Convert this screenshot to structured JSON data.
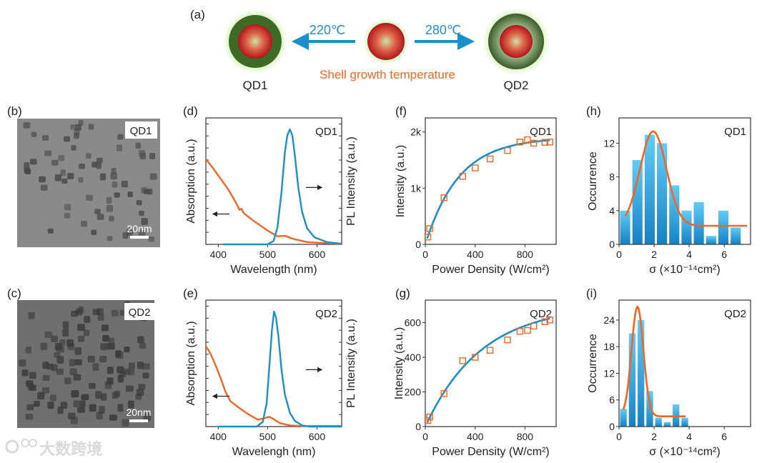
{
  "panel_a": {
    "label": "(a)",
    "left_temp": "220℃",
    "right_temp": "280℃",
    "caption": "Shell growth temperature",
    "qd1": "QD1",
    "qd2": "QD2"
  },
  "tem": [
    {
      "label": "(b)",
      "tag": "QD1",
      "scale": "20nm"
    },
    {
      "label": "(c)",
      "tag": "QD2",
      "scale": "20nm"
    }
  ],
  "watermark": "大数跨境",
  "colors": {
    "blue": "#1a8fc9",
    "orange": "#f26522",
    "bar_top": "#62cdf7",
    "bar_bottom": "#1681c4",
    "temp_text": "#1a8fc9",
    "caption_text": "#f26522"
  },
  "chart_data": [
    {
      "id": "d",
      "label": "(d)",
      "type": "line",
      "tag": "QD1",
      "xlabel": "Wavelength (nm)",
      "ylabel": "Absorption (a.u.)",
      "y2label": "PL Intensity (a.u.)",
      "xlim": [
        375,
        650
      ],
      "ylim": [
        0,
        1.1
      ],
      "xticks": [
        {
          "v": 400,
          "t": "400"
        },
        {
          "v": 500,
          "t": "500"
        },
        {
          "v": 600,
          "t": "600"
        }
      ],
      "series": [
        {
          "name": "Absorption",
          "color": "orange",
          "axis": "left",
          "x": [
            375,
            390,
            405,
            420,
            435,
            443,
            447,
            452,
            470,
            500,
            520,
            535,
            550,
            580,
            620,
            650
          ],
          "y": [
            0.74,
            0.66,
            0.57,
            0.48,
            0.37,
            0.3,
            0.31,
            0.27,
            0.21,
            0.12,
            0.07,
            0.075,
            0.05,
            0.02,
            0.01,
            0.005
          ]
        },
        {
          "name": "PL",
          "color": "blue",
          "axis": "right",
          "x": [
            410,
            500,
            512,
            520,
            528,
            535,
            540,
            545,
            550,
            555,
            562,
            570,
            580,
            595,
            620,
            650
          ],
          "y": [
            0,
            0,
            0.03,
            0.15,
            0.45,
            0.8,
            0.95,
            1,
            0.95,
            0.78,
            0.5,
            0.28,
            0.14,
            0.06,
            0.02,
            0.005
          ]
        }
      ]
    },
    {
      "id": "e",
      "label": "(e)",
      "type": "line",
      "tag": "QD2",
      "xlabel": "Wavelengh (nm)",
      "ylabel": "Absorption (a.u.)",
      "y2label": "PL Intensity (a.u.)",
      "xlim": [
        375,
        650
      ],
      "ylim": [
        0,
        1.1
      ],
      "xticks": [
        {
          "v": 400,
          "t": "400"
        },
        {
          "v": 500,
          "t": "500"
        },
        {
          "v": 600,
          "t": "600"
        }
      ],
      "series": [
        {
          "name": "Absorption",
          "color": "orange",
          "axis": "left",
          "x": [
            375,
            385,
            395,
            405,
            415,
            425,
            440,
            460,
            480,
            492,
            503,
            512,
            525,
            545,
            570,
            650
          ],
          "y": [
            0.7,
            0.63,
            0.53,
            0.42,
            0.3,
            0.22,
            0.17,
            0.11,
            0.06,
            0.07,
            0.085,
            0.065,
            0.03,
            0.01,
            0.005,
            0.005
          ]
        },
        {
          "name": "PL",
          "color": "blue",
          "axis": "right",
          "x": [
            400,
            478,
            490,
            498,
            504,
            509,
            513,
            517,
            522,
            528,
            535,
            545,
            555,
            570,
            585,
            650
          ],
          "y": [
            0,
            0,
            0.04,
            0.2,
            0.55,
            0.85,
            1,
            0.95,
            0.78,
            0.5,
            0.28,
            0.12,
            0.05,
            0.01,
            0,
            0
          ]
        }
      ]
    },
    {
      "id": "f",
      "label": "(f)",
      "type": "scatter",
      "tag": "QD1",
      "xlabel": "Power Density (W/cm²)",
      "ylabel": "Intensity (a.u.)",
      "xlim": [
        0,
        1050
      ],
      "ylim": [
        0,
        2250
      ],
      "xticks": [
        {
          "v": 0,
          "t": "0"
        },
        {
          "v": 400,
          "t": "400"
        },
        {
          "v": 800,
          "t": "800"
        }
      ],
      "yticks": [
        {
          "v": 0,
          "t": "0"
        },
        {
          "v": 1000,
          "t": "1k"
        },
        {
          "v": 2000,
          "t": "2k"
        }
      ],
      "points": {
        "x": [
          20,
          35,
          150,
          300,
          400,
          520,
          660,
          760,
          820,
          870,
          960,
          1000
        ],
        "y": [
          130,
          280,
          830,
          1210,
          1360,
          1520,
          1670,
          1820,
          1860,
          1800,
          1815,
          1820
        ]
      },
      "fit": {
        "model": "A*(1-exp(-x/x0))",
        "A": 1900,
        "x0": 270,
        "xrange": [
          15,
          1000
        ]
      }
    },
    {
      "id": "g",
      "label": "(g)",
      "type": "scatter",
      "tag": "QD2",
      "xlabel": "Power Density (W/cm²)",
      "ylabel": "Intensity (a.u.)",
      "xlim": [
        0,
        1050
      ],
      "ylim": [
        0,
        730
      ],
      "xticks": [
        {
          "v": 0,
          "t": "0"
        },
        {
          "v": 400,
          "t": "400"
        },
        {
          "v": 800,
          "t": "800"
        }
      ],
      "yticks": [
        {
          "v": 0,
          "t": "0"
        },
        {
          "v": 200,
          "t": "200"
        },
        {
          "v": 400,
          "t": "400"
        },
        {
          "v": 600,
          "t": "600"
        }
      ],
      "points": {
        "x": [
          20,
          35,
          150,
          300,
          400,
          520,
          660,
          760,
          820,
          870,
          960,
          1000
        ],
        "y": [
          35,
          55,
          190,
          380,
          400,
          440,
          500,
          550,
          555,
          580,
          605,
          615
        ]
      },
      "fit": {
        "model": "A*(1-exp(-x/x0))",
        "A": 700,
        "x0": 450,
        "xrange": [
          15,
          1000
        ]
      }
    },
    {
      "id": "h",
      "label": "(h)",
      "type": "bar",
      "tag": "QD1",
      "xlabel": "σ (×10⁻¹⁴cm²)",
      "ylabel": "Occurrence",
      "xlim": [
        0,
        7.5
      ],
      "ylim": [
        0,
        15
      ],
      "xticks": [
        {
          "v": 0,
          "t": "0"
        },
        {
          "v": 2,
          "t": "2"
        },
        {
          "v": 4,
          "t": "4"
        },
        {
          "v": 6,
          "t": "6"
        }
      ],
      "yticks": [
        {
          "v": 0,
          "t": "0"
        },
        {
          "v": 4,
          "t": "4"
        },
        {
          "v": 8,
          "t": "8"
        },
        {
          "v": 12,
          "t": "12"
        }
      ],
      "bin_width": 0.7,
      "bin_centers": [
        0.35,
        1.05,
        1.75,
        2.45,
        3.15,
        3.85,
        4.55,
        5.25,
        5.95,
        6.65
      ],
      "values": [
        4,
        10,
        13,
        12,
        7,
        4,
        5,
        1,
        4,
        2
      ],
      "fit": {
        "model": "gaussian",
        "baseline": 2.2,
        "amplitude": 11.2,
        "center": 1.95,
        "sigma": 0.75,
        "xrange": [
          0.35,
          7.3
        ]
      }
    },
    {
      "id": "i",
      "label": "(i)",
      "type": "bar",
      "tag": "QD2",
      "xlabel": "σ (×10⁻¹⁴cm²)",
      "ylabel": "Occurrence",
      "xlim": [
        0,
        7.5
      ],
      "ylim": [
        0,
        28.5
      ],
      "xticks": [
        {
          "v": 0,
          "t": "0"
        },
        {
          "v": 2,
          "t": "2"
        },
        {
          "v": 4,
          "t": "4"
        },
        {
          "v": 6,
          "t": "6"
        }
      ],
      "yticks": [
        {
          "v": 0,
          "t": "0"
        },
        {
          "v": 6,
          "t": "6"
        },
        {
          "v": 12,
          "t": "12"
        },
        {
          "v": 18,
          "t": "18"
        },
        {
          "v": 24,
          "t": "24"
        }
      ],
      "bin_width": 0.5,
      "bin_centers": [
        0.25,
        0.75,
        1.25,
        1.75,
        2.25,
        2.75,
        3.25,
        3.75
      ],
      "values": [
        4,
        21,
        24,
        8,
        2,
        1,
        5,
        2
      ],
      "fit": {
        "model": "gaussian",
        "baseline": 2.3,
        "amplitude": 24.7,
        "center": 1.05,
        "sigma": 0.34,
        "xrange": [
          0.25,
          3.8
        ]
      }
    }
  ]
}
